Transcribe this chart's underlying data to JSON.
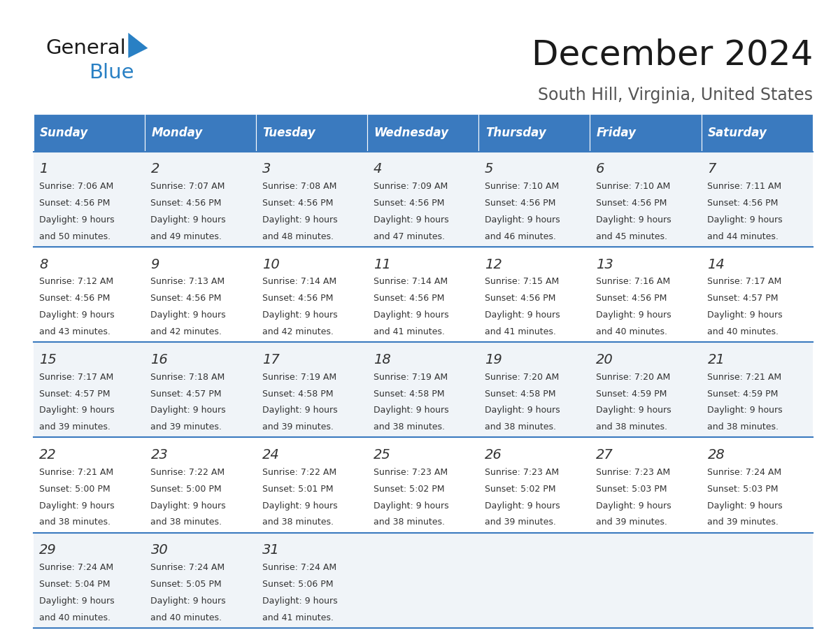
{
  "title": "December 2024",
  "subtitle": "South Hill, Virginia, United States",
  "header_color": "#3a7abf",
  "header_text_color": "#ffffff",
  "days_of_week": [
    "Sunday",
    "Monday",
    "Tuesday",
    "Wednesday",
    "Thursday",
    "Friday",
    "Saturday"
  ],
  "bg_color": "#ffffff",
  "cell_bg_even": "#f0f4f8",
  "cell_bg_odd": "#ffffff",
  "row_line_color": "#3a7abf",
  "text_color": "#333333",
  "title_color": "#1a1a1a",
  "subtitle_color": "#555555",
  "logo_general_color": "#1a1a1a",
  "logo_blue_color": "#2980c4",
  "weeks": [
    [
      {
        "day": 1,
        "sunrise": "7:06 AM",
        "sunset": "4:56 PM",
        "daylight": "9 hours and 50 minutes."
      },
      {
        "day": 2,
        "sunrise": "7:07 AM",
        "sunset": "4:56 PM",
        "daylight": "9 hours and 49 minutes."
      },
      {
        "day": 3,
        "sunrise": "7:08 AM",
        "sunset": "4:56 PM",
        "daylight": "9 hours and 48 minutes."
      },
      {
        "day": 4,
        "sunrise": "7:09 AM",
        "sunset": "4:56 PM",
        "daylight": "9 hours and 47 minutes."
      },
      {
        "day": 5,
        "sunrise": "7:10 AM",
        "sunset": "4:56 PM",
        "daylight": "9 hours and 46 minutes."
      },
      {
        "day": 6,
        "sunrise": "7:10 AM",
        "sunset": "4:56 PM",
        "daylight": "9 hours and 45 minutes."
      },
      {
        "day": 7,
        "sunrise": "7:11 AM",
        "sunset": "4:56 PM",
        "daylight": "9 hours and 44 minutes."
      }
    ],
    [
      {
        "day": 8,
        "sunrise": "7:12 AM",
        "sunset": "4:56 PM",
        "daylight": "9 hours and 43 minutes."
      },
      {
        "day": 9,
        "sunrise": "7:13 AM",
        "sunset": "4:56 PM",
        "daylight": "9 hours and 42 minutes."
      },
      {
        "day": 10,
        "sunrise": "7:14 AM",
        "sunset": "4:56 PM",
        "daylight": "9 hours and 42 minutes."
      },
      {
        "day": 11,
        "sunrise": "7:14 AM",
        "sunset": "4:56 PM",
        "daylight": "9 hours and 41 minutes."
      },
      {
        "day": 12,
        "sunrise": "7:15 AM",
        "sunset": "4:56 PM",
        "daylight": "9 hours and 41 minutes."
      },
      {
        "day": 13,
        "sunrise": "7:16 AM",
        "sunset": "4:56 PM",
        "daylight": "9 hours and 40 minutes."
      },
      {
        "day": 14,
        "sunrise": "7:17 AM",
        "sunset": "4:57 PM",
        "daylight": "9 hours and 40 minutes."
      }
    ],
    [
      {
        "day": 15,
        "sunrise": "7:17 AM",
        "sunset": "4:57 PM",
        "daylight": "9 hours and 39 minutes."
      },
      {
        "day": 16,
        "sunrise": "7:18 AM",
        "sunset": "4:57 PM",
        "daylight": "9 hours and 39 minutes."
      },
      {
        "day": 17,
        "sunrise": "7:19 AM",
        "sunset": "4:58 PM",
        "daylight": "9 hours and 39 minutes."
      },
      {
        "day": 18,
        "sunrise": "7:19 AM",
        "sunset": "4:58 PM",
        "daylight": "9 hours and 38 minutes."
      },
      {
        "day": 19,
        "sunrise": "7:20 AM",
        "sunset": "4:58 PM",
        "daylight": "9 hours and 38 minutes."
      },
      {
        "day": 20,
        "sunrise": "7:20 AM",
        "sunset": "4:59 PM",
        "daylight": "9 hours and 38 minutes."
      },
      {
        "day": 21,
        "sunrise": "7:21 AM",
        "sunset": "4:59 PM",
        "daylight": "9 hours and 38 minutes."
      }
    ],
    [
      {
        "day": 22,
        "sunrise": "7:21 AM",
        "sunset": "5:00 PM",
        "daylight": "9 hours and 38 minutes."
      },
      {
        "day": 23,
        "sunrise": "7:22 AM",
        "sunset": "5:00 PM",
        "daylight": "9 hours and 38 minutes."
      },
      {
        "day": 24,
        "sunrise": "7:22 AM",
        "sunset": "5:01 PM",
        "daylight": "9 hours and 38 minutes."
      },
      {
        "day": 25,
        "sunrise": "7:23 AM",
        "sunset": "5:02 PM",
        "daylight": "9 hours and 38 minutes."
      },
      {
        "day": 26,
        "sunrise": "7:23 AM",
        "sunset": "5:02 PM",
        "daylight": "9 hours and 39 minutes."
      },
      {
        "day": 27,
        "sunrise": "7:23 AM",
        "sunset": "5:03 PM",
        "daylight": "9 hours and 39 minutes."
      },
      {
        "day": 28,
        "sunrise": "7:24 AM",
        "sunset": "5:03 PM",
        "daylight": "9 hours and 39 minutes."
      }
    ],
    [
      {
        "day": 29,
        "sunrise": "7:24 AM",
        "sunset": "5:04 PM",
        "daylight": "9 hours and 40 minutes."
      },
      {
        "day": 30,
        "sunrise": "7:24 AM",
        "sunset": "5:05 PM",
        "daylight": "9 hours and 40 minutes."
      },
      {
        "day": 31,
        "sunrise": "7:24 AM",
        "sunset": "5:06 PM",
        "daylight": "9 hours and 41 minutes."
      },
      null,
      null,
      null,
      null
    ]
  ]
}
